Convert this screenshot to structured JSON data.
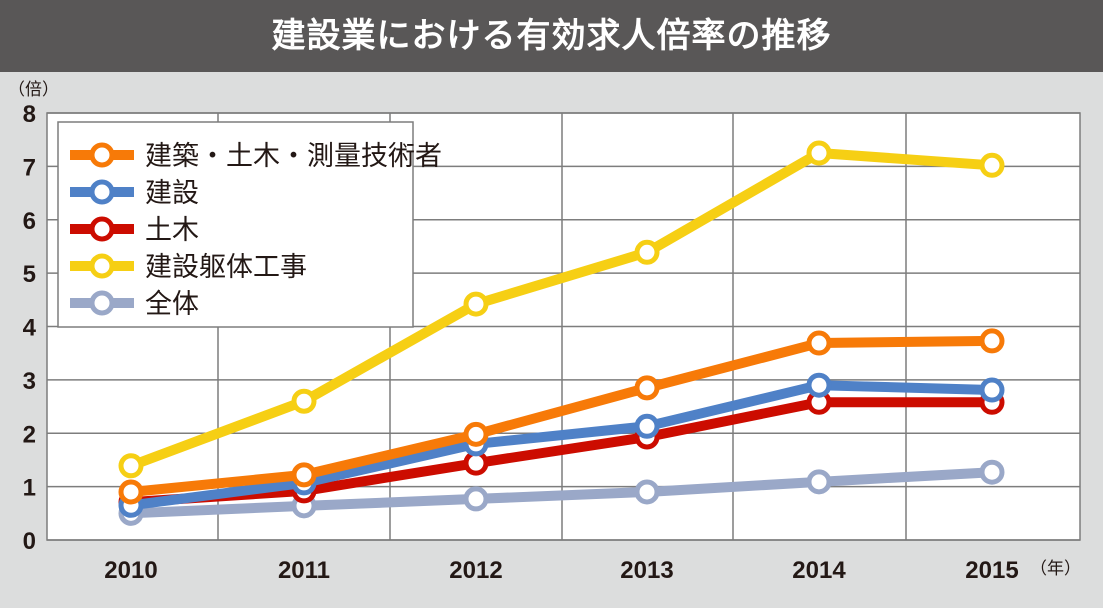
{
  "chart_data": {
    "type": "line",
    "title": "建設業における有効求人倍率の推移",
    "ylabel": "（倍）",
    "xlabel": "（年）",
    "categories": [
      "2010",
      "2011",
      "2012",
      "2013",
      "2014",
      "2015"
    ],
    "ylim": [
      0,
      8
    ],
    "yticks": [
      "0",
      "1",
      "2",
      "3",
      "4",
      "5",
      "6",
      "7",
      "8"
    ],
    "grid": true,
    "legend_position": "top-left",
    "series": [
      {
        "name": "建築・土木・測量技術者",
        "color": "#f77a08",
        "values": [
          0.9,
          1.22,
          1.98,
          2.85,
          3.69,
          3.73
        ]
      },
      {
        "name": "建設",
        "color": "#4f81c7",
        "values": [
          0.65,
          1.07,
          1.8,
          2.13,
          2.9,
          2.81
        ]
      },
      {
        "name": "土木",
        "color": "#cc0c00",
        "values": [
          0.71,
          0.92,
          1.44,
          1.93,
          2.58,
          2.58
        ]
      },
      {
        "name": "建設躯体工事",
        "color": "#f6cf14",
        "values": [
          1.39,
          2.6,
          4.42,
          5.39,
          7.25,
          7.02
        ]
      },
      {
        "name": "全体",
        "color": "#9aa8c8",
        "values": [
          0.5,
          0.64,
          0.77,
          0.9,
          1.09,
          1.27
        ]
      }
    ]
  }
}
